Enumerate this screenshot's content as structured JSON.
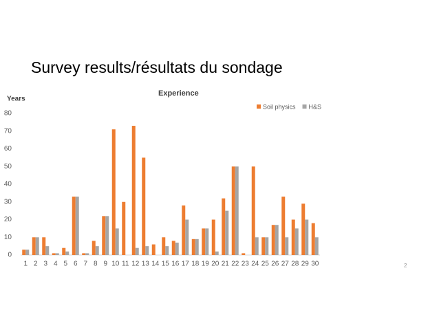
{
  "slide_title": "Survey results/résultats du sondage",
  "page_number": "2",
  "chart_data": {
    "type": "bar",
    "title": "Experience",
    "y_label": "Years",
    "categories": [
      "1",
      "2",
      "3",
      "4",
      "5",
      "6",
      "7",
      "8",
      "9",
      "10",
      "11",
      "12",
      "13",
      "14",
      "15",
      "16",
      "17",
      "18",
      "19",
      "20",
      "21",
      "22",
      "23",
      "24",
      "25",
      "26",
      "27",
      "28",
      "29",
      "30"
    ],
    "series": [
      {
        "name": "Soil physics",
        "color": "#ed7d31",
        "values": [
          3,
          10,
          10,
          1,
          4,
          33,
          1,
          8,
          22,
          71,
          30,
          73,
          55,
          6,
          10,
          8,
          28,
          9,
          15,
          20,
          32,
          50,
          1,
          50,
          10,
          17,
          33,
          20,
          29,
          18
        ]
      },
      {
        "name": "H&S",
        "color": "#a5a5a5",
        "values": [
          3,
          10,
          5,
          1,
          2,
          33,
          1,
          5,
          22,
          15,
          0,
          4,
          5,
          0,
          5,
          7,
          20,
          9,
          15,
          2,
          25,
          50,
          0,
          10,
          10,
          17,
          10,
          15,
          20,
          10
        ]
      }
    ],
    "ylim": [
      0,
      80
    ],
    "yticks": [
      0,
      10,
      20,
      30,
      40,
      50,
      60,
      70,
      80
    ],
    "grid": false,
    "legend": "top-right"
  }
}
